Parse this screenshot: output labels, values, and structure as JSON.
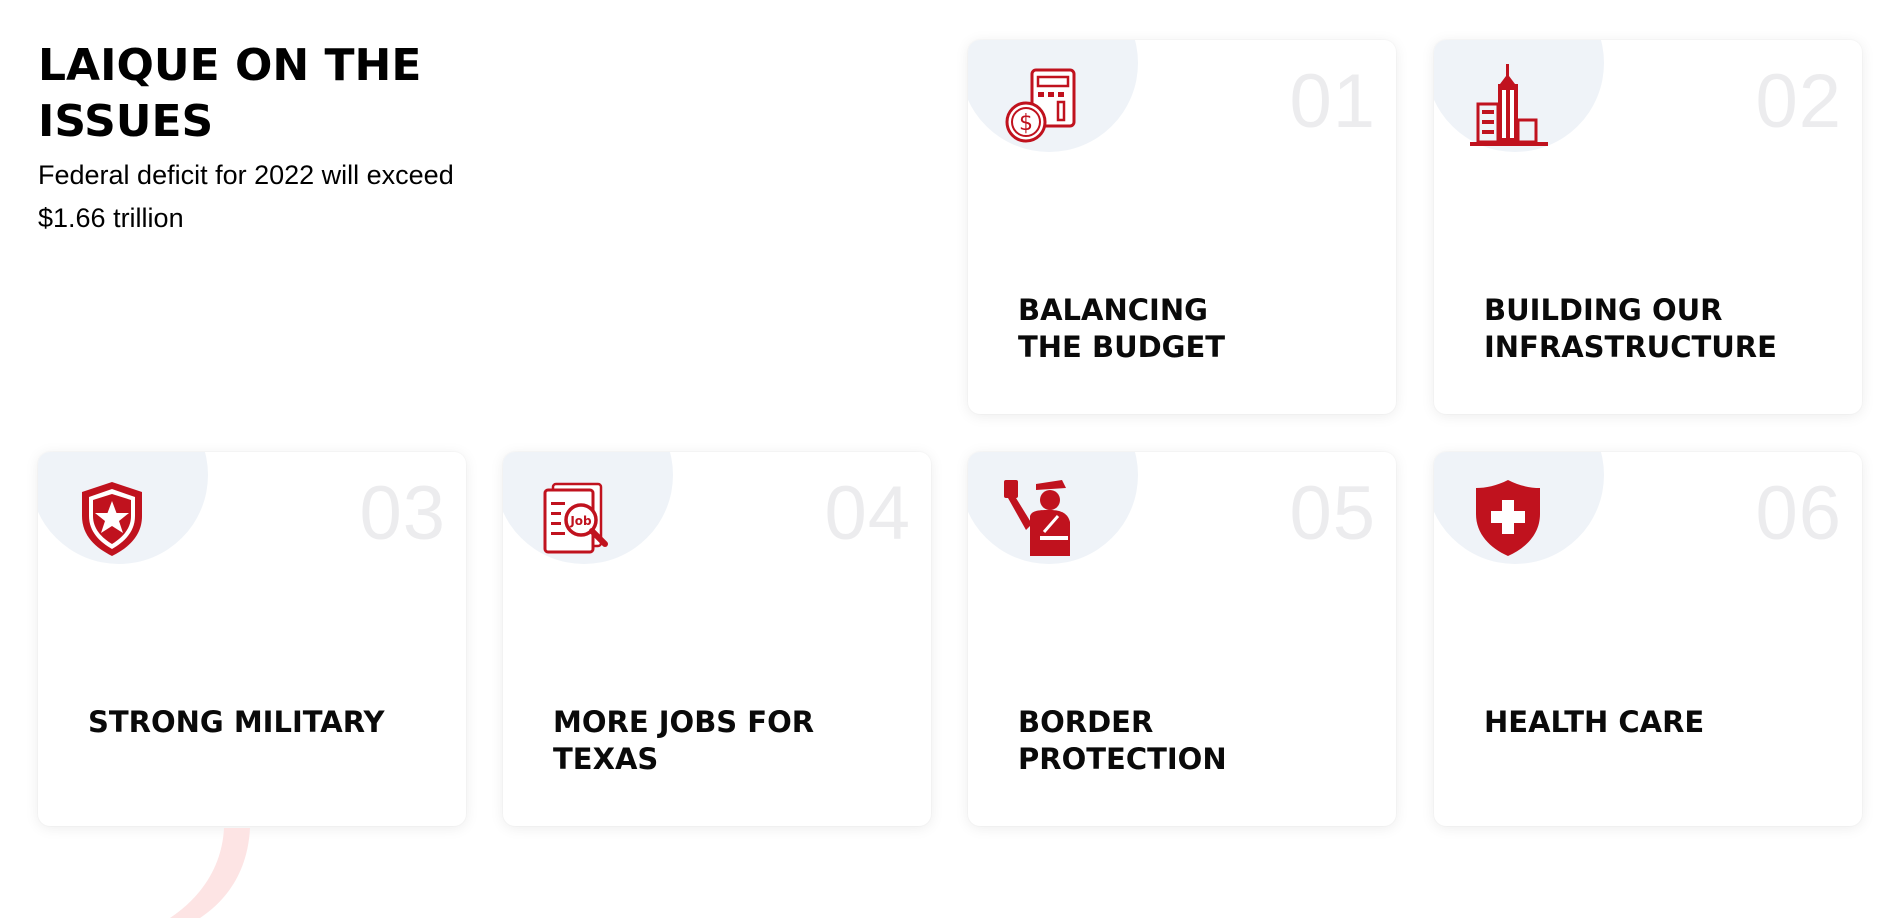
{
  "intro": {
    "heading": "LAIQUE ON THE ISSUES",
    "subtext": "Federal deficit for 2022 will exceed $1.66 trillion"
  },
  "cards": [
    {
      "number": "01",
      "title": "BALANCING\nTHE BUDGET",
      "icon": "budget-calculator-icon"
    },
    {
      "number": "02",
      "title": "BUILDING OUR\nINFRASTRUCTURE",
      "icon": "skyscraper-icon"
    },
    {
      "number": "03",
      "title": "STRONG MILITARY",
      "icon": "star-shield-icon"
    },
    {
      "number": "04",
      "title": "MORE JOBS FOR\nTEXAS",
      "icon": "job-search-icon"
    },
    {
      "number": "05",
      "title": "BORDER\nPROTECTION",
      "icon": "border-officer-icon"
    },
    {
      "number": "06",
      "title": "HEALTH CARE",
      "icon": "medical-shield-icon"
    }
  ],
  "colors": {
    "accent": "#c0121e",
    "number_watermark": "#ececee",
    "icon_blob": "#eff3f8",
    "decor_arc": "#fde4e4"
  }
}
